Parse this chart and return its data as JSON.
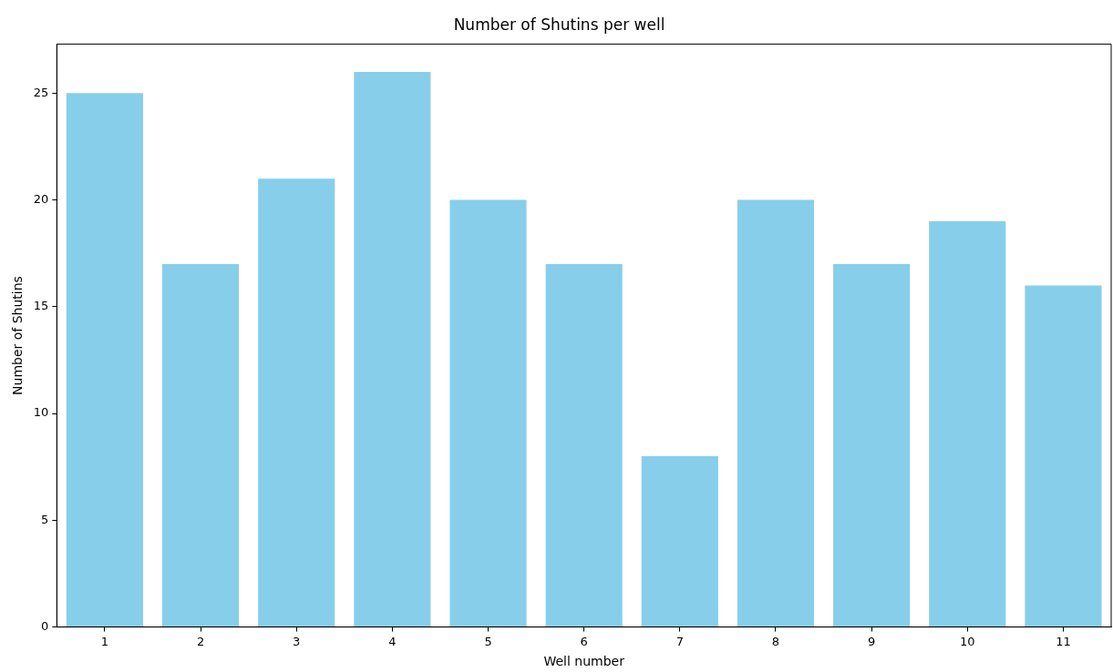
{
  "chart_data": {
    "type": "bar",
    "title": "Number of Shutins per well",
    "xlabel": "Well number",
    "ylabel": "Number of Shutins",
    "categories": [
      "1",
      "2",
      "3",
      "4",
      "5",
      "6",
      "7",
      "8",
      "9",
      "10",
      "11"
    ],
    "values": [
      25,
      17,
      21,
      26,
      20,
      17,
      8,
      20,
      17,
      19,
      16
    ],
    "color": "#87ceeb",
    "ylim": [
      0,
      27.3
    ],
    "yticks": [
      0,
      5,
      10,
      15,
      20,
      25
    ],
    "grid": false,
    "legend": false
  }
}
